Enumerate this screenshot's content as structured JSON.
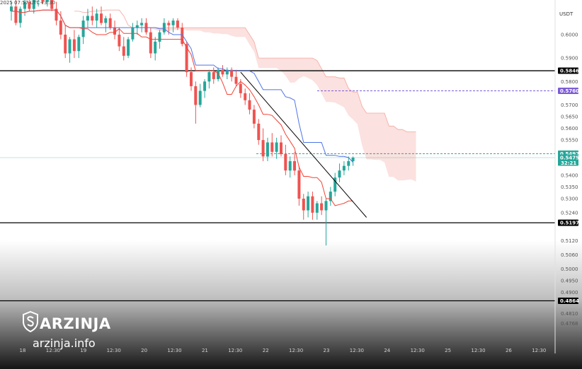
{
  "header": {
    "timestamp": "2025 07:57 UTC+3:30",
    "currency": "USDT"
  },
  "logo": {
    "brand": "ARZINJA",
    "site": "arzinja.info"
  },
  "colors": {
    "up": "#26a69a",
    "down": "#ef5350",
    "base_line": "#4f74e8",
    "conversion_line": "#f44336",
    "cloud": "#f8c9c4",
    "support": "#000000",
    "current_price_line": "#26a69a",
    "target_dashed": "#7b5cd6"
  },
  "chart_data": {
    "type": "candlestick",
    "y_range": [
      0.474,
      0.618
    ],
    "y_ticks": [
      0.6,
      0.59,
      0.58,
      0.57,
      0.565,
      0.56,
      0.555,
      0.54,
      0.535,
      0.53,
      0.524,
      0.512,
      0.506,
      0.5,
      0.495,
      0.49,
      0.481,
      0.4768
    ],
    "x_labels": [
      "18",
      "12:30",
      "19",
      "12:30",
      "20",
      "12:30",
      "21",
      "12:30",
      "22",
      "12:30",
      "23",
      "12:30",
      "24",
      "12:30",
      "25",
      "12:30",
      "26",
      "12:30"
    ],
    "horizontal_levels": [
      {
        "value": 0.5846,
        "label": "0.5846",
        "style": "solid"
      },
      {
        "value": 0.5197,
        "label": "0.5197",
        "style": "solid"
      },
      {
        "value": 0.4864,
        "label": "0.4864",
        "style": "solid"
      }
    ],
    "dashed_levels": [
      {
        "value": 0.576,
        "label": "0.5760",
        "color": "#7b5cd6"
      },
      {
        "value": 0.5492,
        "label": "0.5492",
        "color": "#26a69a"
      }
    ],
    "current_price": {
      "value": 0.5475,
      "label": "0.5475",
      "countdown": "32:21"
    },
    "candles": [
      [
        0.61,
        0.614,
        0.606,
        0.612
      ],
      [
        0.612,
        0.616,
        0.604,
        0.605
      ],
      [
        0.605,
        0.612,
        0.603,
        0.611
      ],
      [
        0.611,
        0.615,
        0.608,
        0.614
      ],
      [
        0.614,
        0.617,
        0.61,
        0.611
      ],
      [
        0.611,
        0.616,
        0.609,
        0.615
      ],
      [
        0.615,
        0.6175,
        0.612,
        0.616
      ],
      [
        0.616,
        0.618,
        0.613,
        0.614
      ],
      [
        0.614,
        0.617,
        0.612,
        0.615
      ],
      [
        0.615,
        0.617,
        0.61,
        0.611
      ],
      [
        0.611,
        0.614,
        0.604,
        0.606
      ],
      [
        0.606,
        0.61,
        0.598,
        0.6
      ],
      [
        0.6,
        0.604,
        0.59,
        0.592
      ],
      [
        0.592,
        0.599,
        0.588,
        0.598
      ],
      [
        0.598,
        0.602,
        0.59,
        0.593
      ],
      [
        0.593,
        0.6,
        0.59,
        0.599
      ],
      [
        0.599,
        0.608,
        0.596,
        0.606
      ],
      [
        0.606,
        0.611,
        0.603,
        0.608
      ],
      [
        0.608,
        0.612,
        0.604,
        0.606
      ],
      [
        0.606,
        0.611,
        0.603,
        0.609
      ],
      [
        0.609,
        0.612,
        0.604,
        0.605
      ],
      [
        0.605,
        0.608,
        0.601,
        0.607
      ],
      [
        0.607,
        0.609,
        0.602,
        0.603
      ],
      [
        0.603,
        0.606,
        0.598,
        0.6
      ],
      [
        0.6,
        0.603,
        0.593,
        0.595
      ],
      [
        0.595,
        0.599,
        0.589,
        0.591
      ],
      [
        0.591,
        0.599,
        0.59,
        0.598
      ],
      [
        0.598,
        0.605,
        0.597,
        0.603
      ],
      [
        0.603,
        0.606,
        0.6,
        0.604
      ],
      [
        0.604,
        0.607,
        0.601,
        0.605
      ],
      [
        0.605,
        0.607,
        0.6,
        0.601
      ],
      [
        0.601,
        0.603,
        0.59,
        0.592
      ],
      [
        0.592,
        0.599,
        0.589,
        0.597
      ],
      [
        0.597,
        0.602,
        0.594,
        0.601
      ],
      [
        0.601,
        0.607,
        0.6,
        0.605
      ],
      [
        0.605,
        0.606,
        0.6,
        0.604
      ],
      [
        0.604,
        0.607,
        0.601,
        0.606
      ],
      [
        0.606,
        0.607,
        0.602,
        0.603
      ],
      [
        0.603,
        0.605,
        0.595,
        0.596
      ],
      [
        0.596,
        0.597,
        0.582,
        0.584
      ],
      [
        0.584,
        0.586,
        0.576,
        0.578
      ],
      [
        0.578,
        0.58,
        0.562,
        0.57
      ],
      [
        0.57,
        0.579,
        0.569,
        0.576
      ],
      [
        0.576,
        0.581,
        0.573,
        0.58
      ],
      [
        0.58,
        0.585,
        0.577,
        0.584
      ],
      [
        0.584,
        0.586,
        0.579,
        0.581
      ],
      [
        0.581,
        0.586,
        0.58,
        0.585
      ],
      [
        0.585,
        0.587,
        0.582,
        0.583
      ],
      [
        0.583,
        0.586,
        0.581,
        0.585
      ],
      [
        0.585,
        0.586,
        0.58,
        0.582
      ],
      [
        0.582,
        0.585,
        0.578,
        0.579
      ],
      [
        0.579,
        0.581,
        0.573,
        0.575
      ],
      [
        0.575,
        0.577,
        0.57,
        0.572
      ],
      [
        0.572,
        0.575,
        0.566,
        0.568
      ],
      [
        0.568,
        0.57,
        0.56,
        0.562
      ],
      [
        0.562,
        0.564,
        0.553,
        0.555
      ],
      [
        0.555,
        0.56,
        0.546,
        0.548
      ],
      [
        0.548,
        0.556,
        0.546,
        0.554
      ],
      [
        0.554,
        0.558,
        0.548,
        0.55
      ],
      [
        0.55,
        0.556,
        0.547,
        0.554
      ],
      [
        0.554,
        0.557,
        0.548,
        0.549
      ],
      [
        0.549,
        0.553,
        0.54,
        0.542
      ],
      [
        0.542,
        0.548,
        0.539,
        0.546
      ],
      [
        0.546,
        0.55,
        0.54,
        0.542
      ],
      [
        0.542,
        0.544,
        0.527,
        0.53
      ],
      [
        0.53,
        0.532,
        0.521,
        0.525
      ],
      [
        0.525,
        0.533,
        0.522,
        0.531
      ],
      [
        0.531,
        0.533,
        0.521,
        0.524
      ],
      [
        0.524,
        0.529,
        0.521,
        0.528
      ],
      [
        0.528,
        0.531,
        0.523,
        0.525
      ],
      [
        0.525,
        0.53,
        0.51,
        0.529
      ],
      [
        0.529,
        0.535,
        0.527,
        0.533
      ],
      [
        0.533,
        0.541,
        0.531,
        0.539
      ],
      [
        0.539,
        0.545,
        0.537,
        0.542
      ],
      [
        0.542,
        0.546,
        0.54,
        0.544
      ],
      [
        0.544,
        0.548,
        0.542,
        0.546
      ],
      [
        0.546,
        0.548,
        0.544,
        0.5475
      ]
    ]
  }
}
